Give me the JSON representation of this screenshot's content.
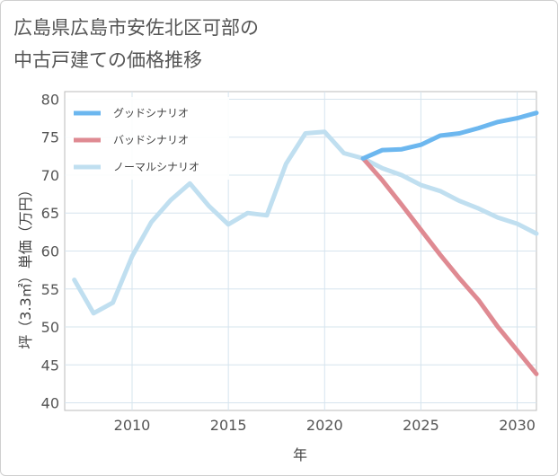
{
  "title_line1": "広島県広島市安佐北区可部の",
  "title_line2": "中古戸建ての価格推移",
  "chart_data": {
    "type": "line",
    "xlabel": "年",
    "ylabel": "坪（3.3㎡）単価（万円）",
    "xlim": [
      2006.5,
      2031
    ],
    "ylim": [
      39,
      81
    ],
    "xticks": [
      2010,
      2015,
      2020,
      2025,
      2030
    ],
    "yticks": [
      40,
      45,
      50,
      55,
      60,
      65,
      70,
      75,
      80
    ],
    "grid": true,
    "legend_position": "top-left",
    "series": [
      {
        "name": "グッドシナリオ",
        "color": "#6cb7ef",
        "x": [
          2022,
          2023,
          2024,
          2025,
          2026,
          2027,
          2028,
          2029,
          2030,
          2031
        ],
        "y": [
          72.2,
          73.3,
          73.4,
          74.0,
          75.2,
          75.5,
          76.2,
          77.0,
          77.5,
          78.2
        ]
      },
      {
        "name": "バッドシナリオ",
        "color": "#df8a92",
        "x": [
          2022,
          2023,
          2024,
          2025,
          2026,
          2027,
          2028,
          2029,
          2030,
          2031
        ],
        "y": [
          72.2,
          69.3,
          66.1,
          62.8,
          59.5,
          56.4,
          53.5,
          50.0,
          46.9,
          43.8
        ]
      },
      {
        "name": "ノーマルシナリオ",
        "color": "#c0dff0",
        "x": [
          2007,
          2008,
          2009,
          2010,
          2011,
          2012,
          2013,
          2014,
          2015,
          2016,
          2017,
          2018,
          2019,
          2020,
          2021,
          2022,
          2023,
          2024,
          2025,
          2026,
          2027,
          2028,
          2029,
          2030,
          2031
        ],
        "y": [
          56.2,
          51.8,
          53.2,
          59.3,
          63.8,
          66.7,
          68.9,
          65.9,
          63.5,
          65.0,
          64.7,
          71.5,
          75.5,
          75.7,
          72.9,
          72.2,
          70.9,
          70.0,
          68.7,
          67.9,
          66.6,
          65.6,
          64.4,
          63.6,
          62.3
        ]
      }
    ]
  }
}
